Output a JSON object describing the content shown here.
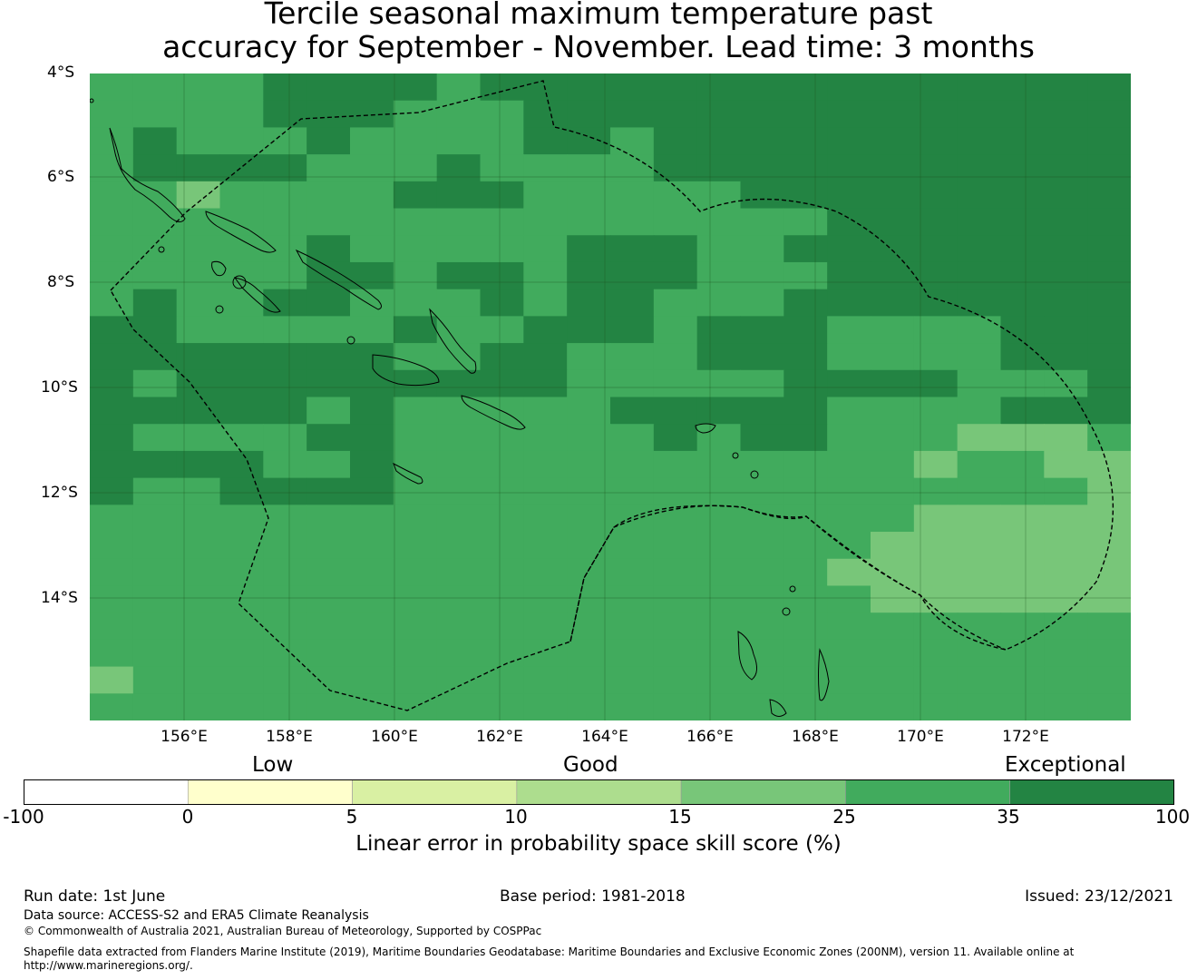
{
  "title_line1": "Tercile seasonal maximum temperature past",
  "title_line2": "accuracy for September - November. Lead time: 3 months",
  "lat_ticks": [
    "4°S",
    "6°S",
    "8°S",
    "10°S",
    "12°S",
    "14°S"
  ],
  "lon_ticks": [
    "156°E",
    "158°E",
    "160°E",
    "162°E",
    "164°E",
    "166°E",
    "168°E",
    "170°E",
    "172°E"
  ],
  "colorbar": {
    "categories": {
      "low": "Low",
      "good": "Good",
      "exceptional": "Exceptional"
    },
    "ticks": [
      "-100",
      "0",
      "5",
      "10",
      "15",
      "25",
      "35",
      "100"
    ],
    "colors": [
      "#ffffff",
      "#ffffcc",
      "#d9f0a3",
      "#addd8e",
      "#78c679",
      "#41ab5d",
      "#238443"
    ],
    "label": "Linear error in probability space skill score (%)"
  },
  "footer": {
    "run_date": "Run date: 1st June",
    "base_period": "Base period: 1981-2018",
    "issued": "Issued: 23/12/2021",
    "data_source": "Data source: ACCESS-S2 and ERA5 Climate Reanalysis",
    "copyright": "© Commonwealth of Australia 2021, Australian Bureau of Meteorology, Supported by COSPPac",
    "shapefile_1": "Shapefile data extracted from Flanders Marine Institute (2019), Maritime Boundaries Geodatabase: Maritime Boundaries and Exclusive Economic Zones (200NM), version 11. Available online at",
    "shapefile_2": "http://www.marineregions.org/."
  },
  "map": {
    "legend_index_meaning": "0:-100..0 1:0..5 2:5..10 3:10..15 4:15..25 5:25..35 6:35..100",
    "skill_rows": [
      "555566665666666666666666",
      "555566655566666666666666",
      "565556555566566666666666",
      "566665556555566666666666",
      "554555566655555666666666",
      "555555555555555556666666",
      "555556555556665566666666",
      "555556656656665556666666",
      "565566555656655566666666",
      "665555565566656665555666",
      "666666655665556665555666",
      "656666666665555566665556",
      "666665655555666665555666",
      "655556655555565665554445",
      "666655655555555555545544",
      "655666655555555555555554",
      "555555555555555555544444",
      "555555555555555555444444",
      "555555555555555554444444",
      "555555555555555555444444",
      "555555555555555555555555",
      "555555555555555555555555",
      "455555555555555555555555",
      "555555555555555555555555"
    ]
  }
}
